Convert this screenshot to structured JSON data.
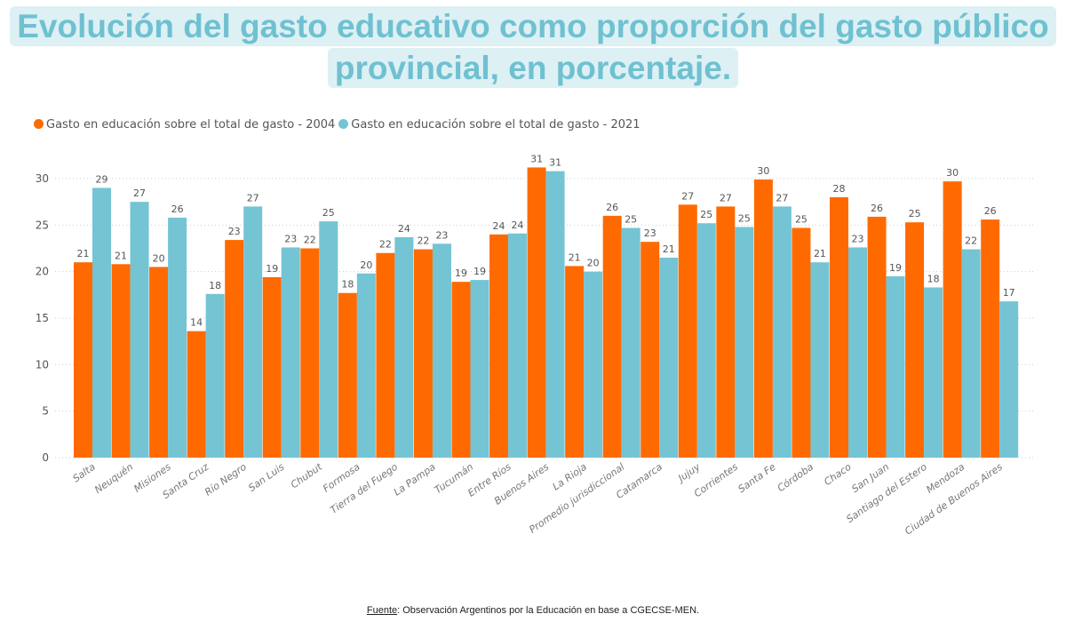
{
  "title": "Evolución del gasto educativo como proporción del gasto público provincial, en porcentaje.",
  "footer": {
    "source_label": "Fuente",
    "source_text": ": Observación Argentinos por la Educación en base a CGECSE-MEN."
  },
  "chart_data": {
    "type": "bar",
    "title": "Evolución del gasto educativo como proporción del gasto público provincial, en porcentaje.",
    "xlabel": "",
    "ylabel": "",
    "ylim": [
      0,
      32
    ],
    "yticks": [
      0,
      5,
      10,
      15,
      20,
      25,
      30
    ],
    "grid": "horizontal dotted",
    "legend": "top-left",
    "categories": [
      "Salta",
      "Neuquén",
      "Misiones",
      "Santa Cruz",
      "Río Negro",
      "San Luis",
      "Chubut",
      "Formosa",
      "Tierra del Fuego",
      "La Pampa",
      "Tucumán",
      "Entre Ríos",
      "Buenos Aires",
      "La Rioja",
      "Promedio jurisdiccional",
      "Catamarca",
      "Jujuy",
      "Corrientes",
      "Santa Fe",
      "Córdoba",
      "Chaco",
      "San Juan",
      "Santiago del Estero",
      "Mendoza",
      "Ciudad de Buenos Aires"
    ],
    "series": [
      {
        "name": "Gasto en educación sobre el total de gasto - 2004",
        "color": "#ff6a00",
        "values": [
          21,
          20.8,
          20.5,
          13.6,
          23.4,
          19.4,
          22.5,
          17.7,
          22,
          22.4,
          18.9,
          24,
          31.2,
          20.6,
          26,
          23.2,
          27.2,
          27,
          29.9,
          24.7,
          28,
          25.9,
          25.3,
          29.7,
          25.6
        ],
        "labels": [
          "21",
          "21",
          "20",
          "14",
          "23",
          "19",
          "22",
          "18",
          "22",
          "22",
          "19",
          "24",
          "31",
          "21",
          "26",
          "23",
          "27",
          "27",
          "30",
          "25",
          "28",
          "26",
          "25",
          "30",
          "26"
        ]
      },
      {
        "name": "Gasto en educación sobre el total de gasto - 2021",
        "color": "#74c4d4",
        "values": [
          29,
          27.5,
          25.8,
          17.6,
          27,
          22.6,
          25.4,
          19.8,
          23.7,
          23,
          19.1,
          24.1,
          30.8,
          20,
          24.7,
          21.5,
          25.2,
          24.8,
          27,
          21,
          22.6,
          19.5,
          18.3,
          22.4,
          16.8
        ],
        "labels": [
          "29",
          "27",
          "26",
          "18",
          "27",
          "23",
          "25",
          "20",
          "24",
          "23",
          "19",
          "24",
          "31",
          "20",
          "25",
          "21",
          "25",
          "25",
          "27",
          "21",
          "23",
          "19",
          "18",
          "22",
          "17"
        ]
      }
    ]
  }
}
